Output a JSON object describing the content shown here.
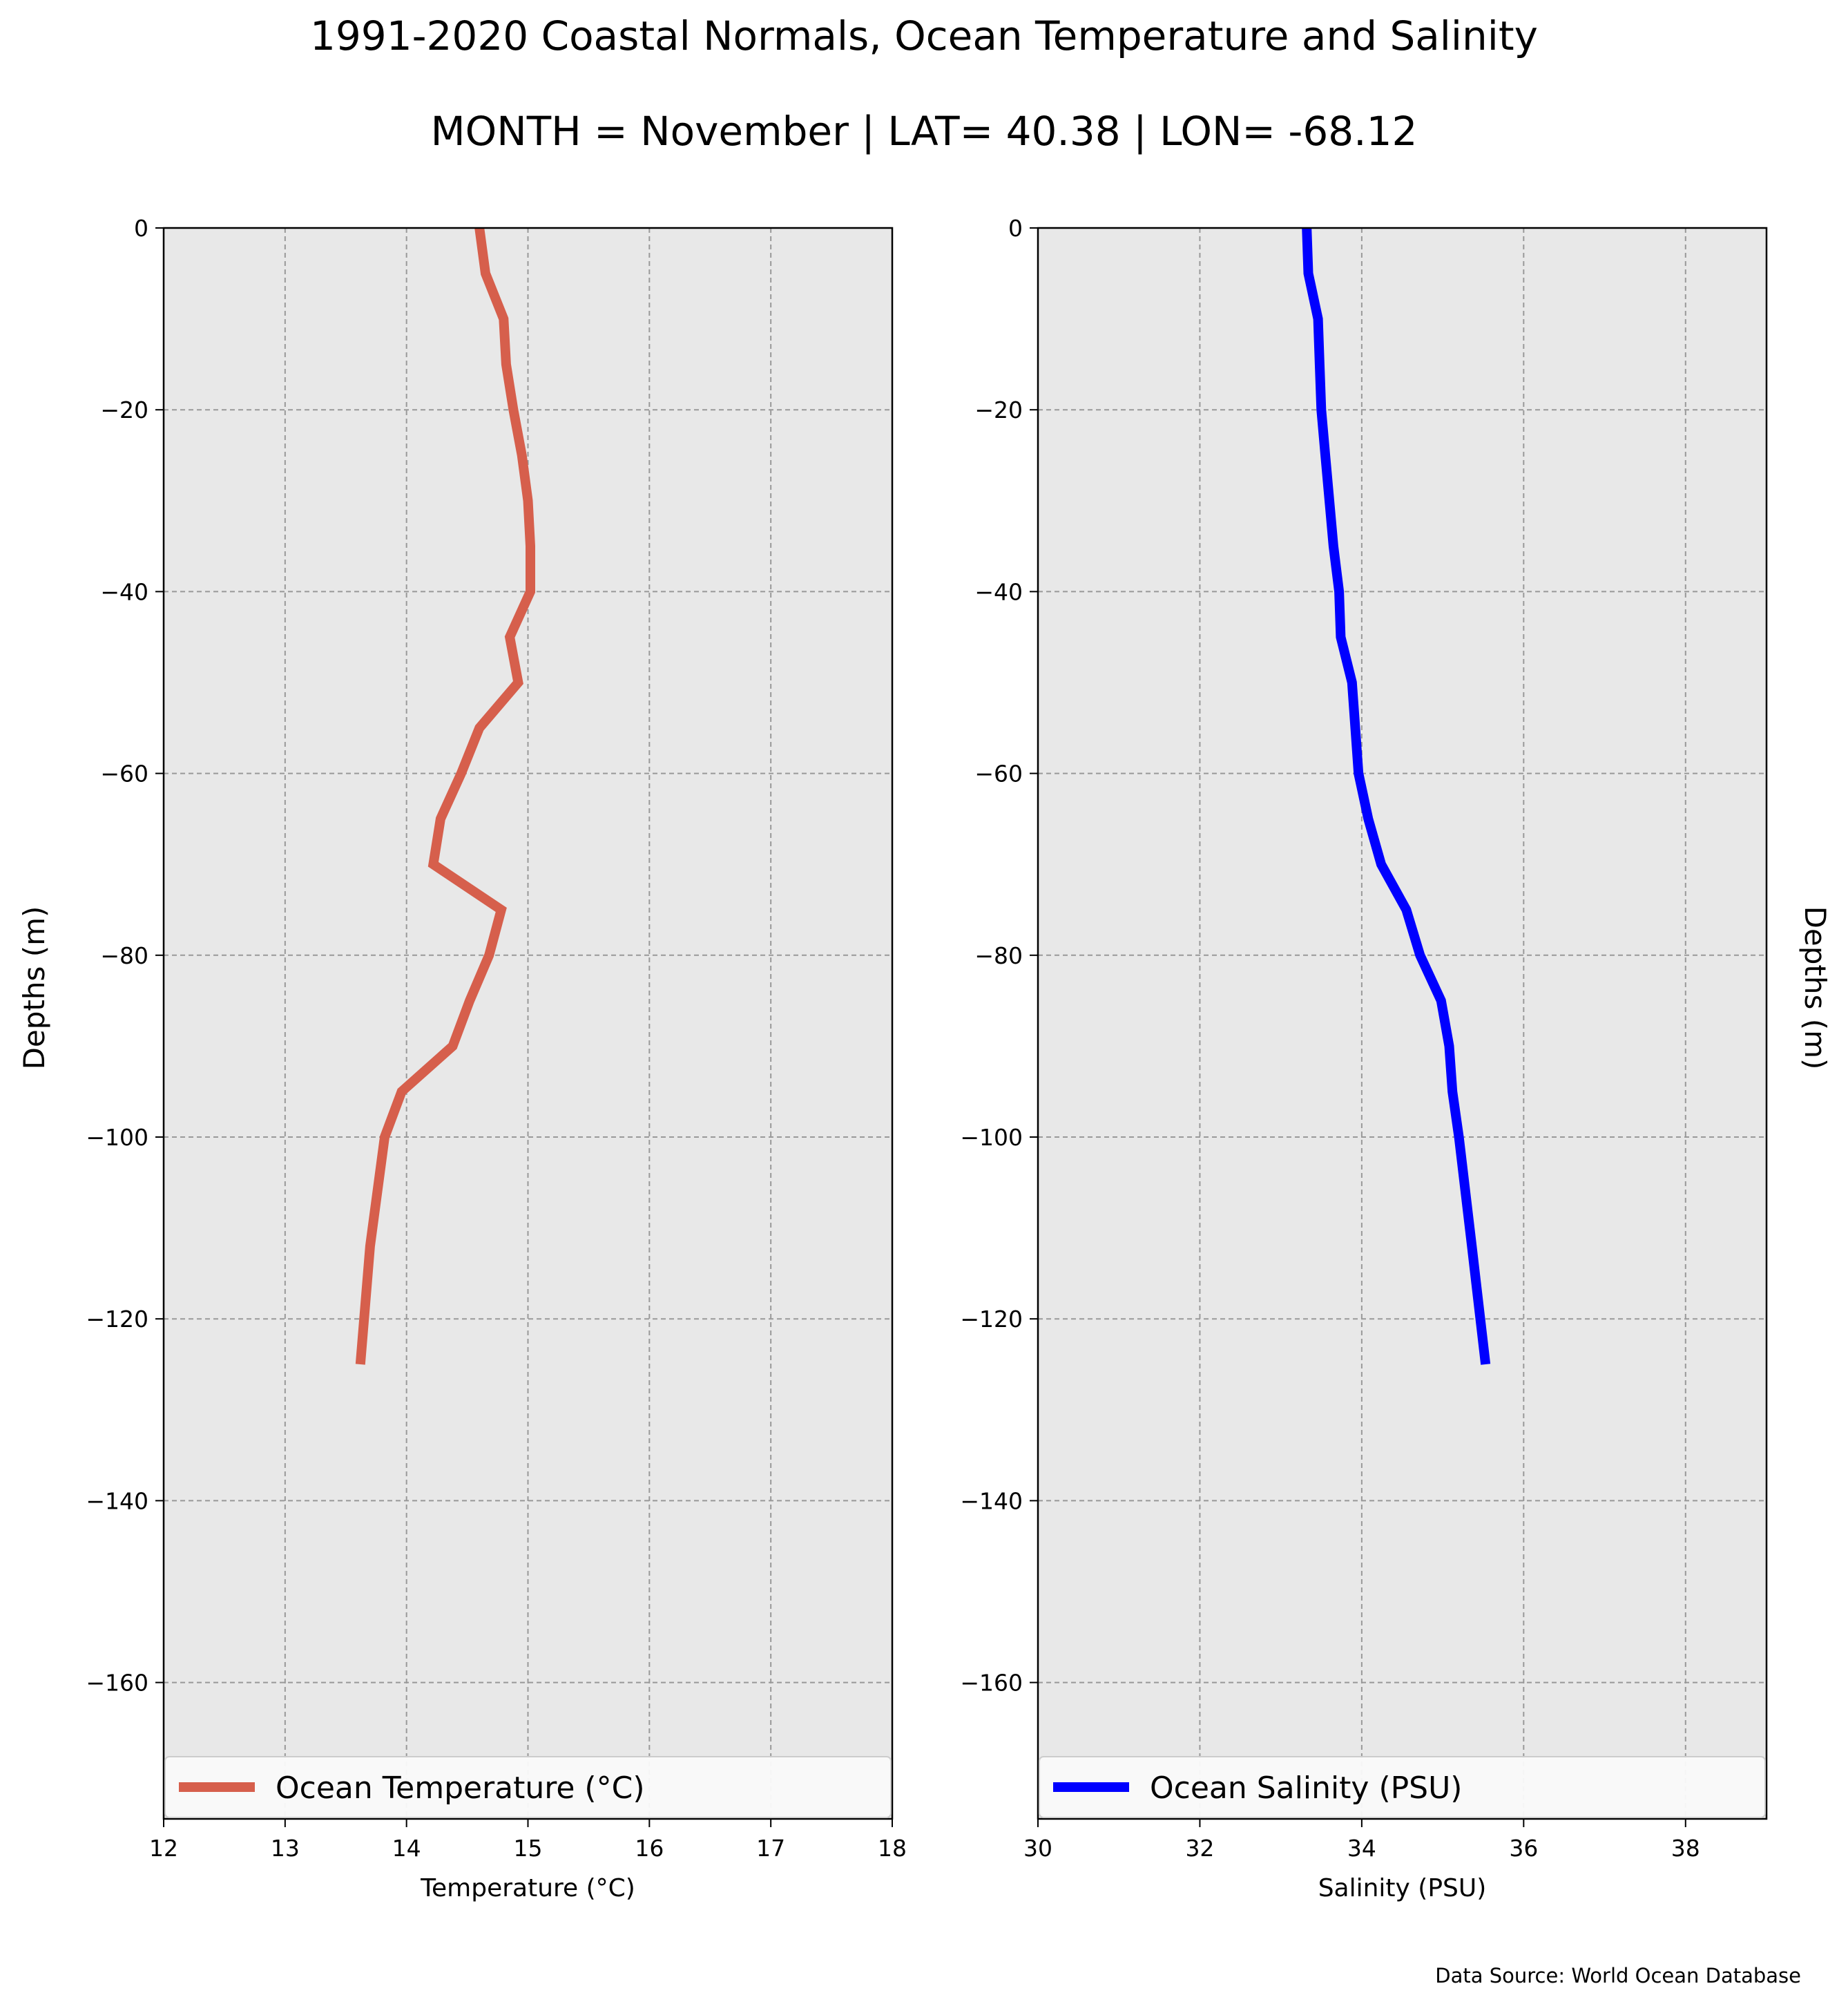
{
  "figure": {
    "title": "1991-2020 Coastal Normals, Ocean Temperature and Salinity",
    "subtitle": "MONTH = November | LAT= 40.38 | LON= -68.12",
    "source": "Data Source: World Ocean Database"
  },
  "colors": {
    "temperature_line": "#d65f4c",
    "salinity_line": "#0000ff",
    "plot_background": "#e8e8e8",
    "grid": "#999999"
  },
  "chart_data": [
    {
      "type": "line",
      "orientation": "vertical-profile",
      "xlabel": "Temperature (°C)",
      "ylabel": "Depths (m)",
      "xlim": [
        12,
        18
      ],
      "ylim": [
        -175,
        0
      ],
      "xticks": [
        12,
        13,
        14,
        15,
        16,
        17,
        18
      ],
      "yticks": [
        0,
        -20,
        -40,
        -60,
        -80,
        -100,
        -120,
        -140,
        -160
      ],
      "grid": true,
      "legend_position": "bottom",
      "series": [
        {
          "name": "Ocean Temperature (°C)",
          "color": "#d65f4c",
          "x": [
            14.6,
            14.65,
            14.8,
            14.82,
            14.88,
            14.95,
            15.0,
            15.02,
            15.02,
            14.85,
            14.92,
            14.6,
            14.45,
            14.28,
            14.22,
            14.78,
            14.68,
            14.52,
            14.38,
            13.96,
            13.82,
            13.7,
            13.62
          ],
          "y": [
            0,
            -5,
            -10,
            -15,
            -20,
            -25,
            -30,
            -35,
            -40,
            -45,
            -50,
            -55,
            -60,
            -65,
            -70,
            -75,
            -80,
            -85,
            -90,
            -95,
            -100,
            -112,
            -125
          ]
        }
      ]
    },
    {
      "type": "line",
      "orientation": "vertical-profile",
      "xlabel": "Salinity (PSU)",
      "ylabel": "Depths (m)",
      "xlim": [
        30,
        39
      ],
      "ylim": [
        -175,
        0
      ],
      "xticks": [
        30,
        32,
        34,
        36,
        38
      ],
      "yticks": [
        0,
        -20,
        -40,
        -60,
        -80,
        -100,
        -120,
        -140,
        -160
      ],
      "grid": true,
      "legend_position": "bottom",
      "series": [
        {
          "name": "Ocean Salinity (PSU)",
          "color": "#0000ff",
          "x": [
            33.32,
            33.34,
            33.46,
            33.48,
            33.5,
            33.55,
            33.6,
            33.65,
            33.72,
            33.74,
            33.88,
            33.92,
            33.96,
            34.08,
            34.24,
            34.55,
            34.72,
            34.98,
            35.08,
            35.12,
            35.2,
            35.36,
            35.53
          ],
          "y": [
            0,
            -5,
            -10,
            -15,
            -20,
            -25,
            -30,
            -35,
            -40,
            -45,
            -50,
            -55,
            -60,
            -65,
            -70,
            -75,
            -80,
            -85,
            -90,
            -95,
            -100,
            -112,
            -125
          ]
        }
      ]
    }
  ]
}
